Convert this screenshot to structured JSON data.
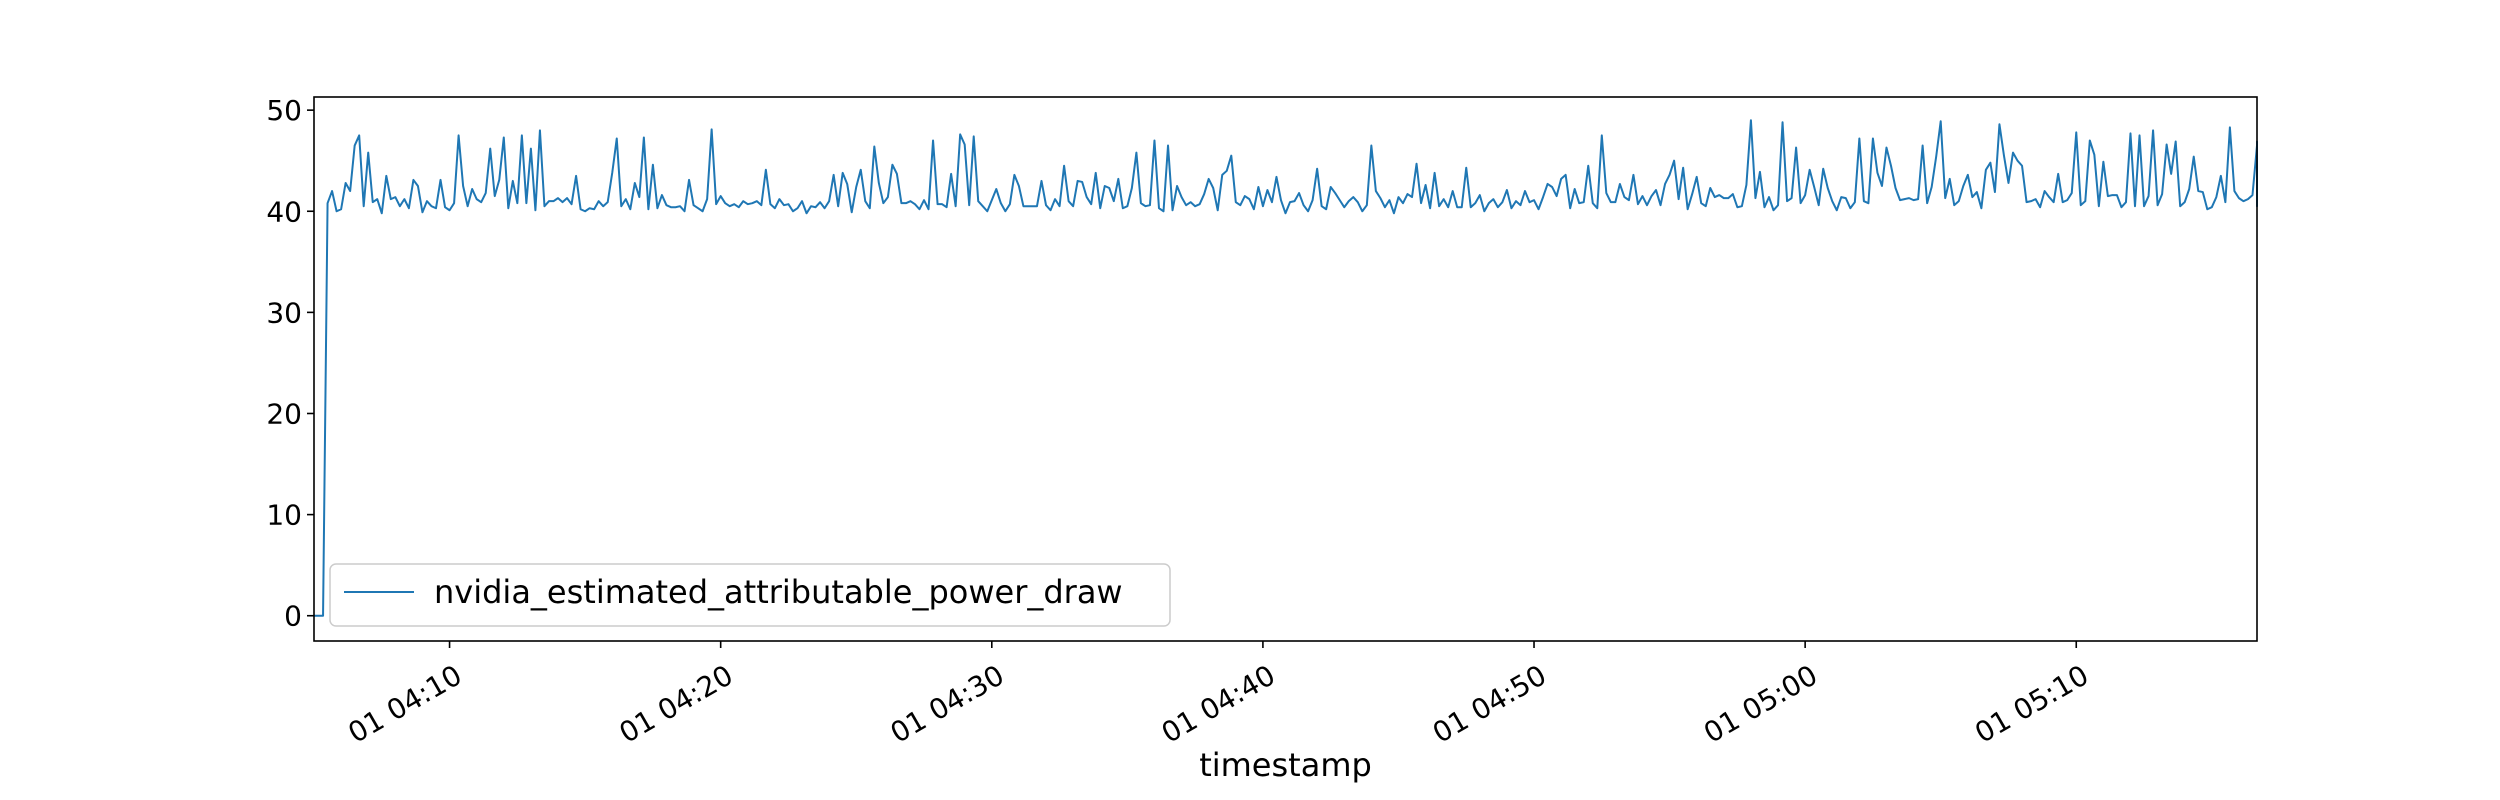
{
  "chart_data": {
    "type": "line",
    "xlabel": "timestamp",
    "ylabel": "",
    "ylim": [
      -2.5,
      51.3
    ],
    "xlim": [
      "01 04:05:00",
      "01 05:16:40"
    ],
    "grid": false,
    "legend_placement": "lower-left",
    "colors": {
      "series": "#1f77b4",
      "axes": "#000000",
      "legend_border": "#cccccc"
    },
    "x_ticks": [
      {
        "x": "01 04:10:00",
        "label": "01 04:10"
      },
      {
        "x": "01 04:20:00",
        "label": "01 04:20"
      },
      {
        "x": "01 04:30:00",
        "label": "01 04:30"
      },
      {
        "x": "01 04:40:00",
        "label": "01 04:40"
      },
      {
        "x": "01 04:50:00",
        "label": "01 04:50"
      },
      {
        "x": "01 05:00:00",
        "label": "01 05:00"
      },
      {
        "x": "01 05:10:00",
        "label": "01 05:10"
      }
    ],
    "y_ticks": [
      {
        "y": 0,
        "label": "0"
      },
      {
        "y": 10,
        "label": "10"
      },
      {
        "y": 20,
        "label": "20"
      },
      {
        "y": 30,
        "label": "30"
      },
      {
        "y": 40,
        "label": "40"
      },
      {
        "y": 50,
        "label": "50"
      }
    ],
    "series": [
      {
        "name": "nvidia_estimated_attributable_power_draw",
        "x_start": "01 04:05:00",
        "x_step_seconds": 10,
        "values": [
          0.0,
          0.0,
          0.0,
          40.8,
          42.0,
          40.0,
          40.2,
          42.8,
          42.0,
          46.5,
          47.5,
          40.5,
          45.8,
          40.9,
          41.2,
          39.8,
          43.5,
          41.2,
          41.4,
          40.5,
          41.2,
          40.3,
          43.1,
          42.5,
          39.9,
          41.0,
          40.5,
          40.3,
          43.1,
          40.4,
          40.1,
          40.8,
          47.5,
          42.5,
          40.5,
          42.2,
          41.2,
          40.9,
          41.8,
          46.2,
          41.5,
          43.1,
          47.3,
          40.3,
          43.0,
          40.8,
          47.5,
          40.8,
          46.2,
          40.1,
          48.0,
          40.5,
          41.0,
          41.0,
          41.3,
          40.9,
          41.3,
          40.7,
          43.5,
          40.2,
          40.0,
          40.3,
          40.2,
          41.0,
          40.5,
          40.9,
          43.8,
          47.2,
          40.5,
          41.2,
          40.2,
          42.8,
          41.4,
          47.3,
          40.2,
          44.6,
          40.3,
          41.6,
          40.6,
          40.4,
          40.4,
          40.5,
          40.0,
          43.1,
          40.6,
          40.3,
          40.0,
          41.2,
          48.1,
          40.7,
          41.5,
          40.8,
          40.5,
          40.7,
          40.4,
          41.0,
          40.7,
          40.8,
          41.0,
          40.6,
          44.1,
          40.7,
          40.3,
          41.2,
          40.6,
          40.7,
          40.0,
          40.3,
          41.0,
          39.8,
          40.5,
          40.4,
          40.9,
          40.3,
          41.0,
          43.6,
          40.5,
          43.8,
          42.7,
          39.9,
          42.4,
          44.1,
          41.0,
          40.3,
          46.4,
          42.8,
          40.8,
          41.4,
          44.6,
          43.7,
          40.8,
          40.8,
          41.0,
          40.7,
          40.2,
          41.1,
          40.2,
          47.0,
          40.7,
          40.7,
          40.4,
          43.7,
          40.5,
          47.6,
          46.6,
          40.6,
          47.4,
          41.0,
          40.5,
          40.0,
          41.1,
          42.2,
          40.8,
          40.0,
          40.7,
          43.6,
          42.5,
          40.5,
          40.5,
          40.5,
          40.5,
          43.0,
          40.6,
          40.1,
          41.2,
          40.5,
          44.5,
          41.0,
          40.5,
          43.0,
          42.9,
          41.4,
          40.7,
          43.8,
          40.3,
          42.5,
          42.3,
          41.0,
          43.2,
          40.3,
          40.5,
          42.3,
          45.8,
          40.8,
          40.5,
          40.6,
          47.0,
          40.3,
          40.0,
          46.5,
          40.1,
          42.5,
          41.4,
          40.6,
          40.9,
          40.5,
          40.7,
          41.7,
          43.2,
          42.3,
          40.1,
          43.6,
          44.0,
          45.5,
          40.9,
          40.6,
          41.5,
          41.2,
          40.2,
          42.4,
          40.5,
          42.1,
          40.9,
          43.4,
          41.1,
          39.8,
          40.9,
          41.0,
          41.8,
          40.6,
          40.0,
          41.1,
          44.2,
          40.5,
          40.2,
          42.4,
          41.8,
          41.1,
          40.4,
          41.0,
          41.4,
          40.9,
          40.0,
          40.6,
          46.5,
          42.0,
          41.3,
          40.4,
          41.1,
          39.8,
          41.4,
          40.8,
          41.7,
          41.4,
          44.7,
          40.8,
          42.6,
          40.3,
          43.8,
          40.5,
          41.2,
          40.4,
          42.0,
          40.4,
          40.4,
          44.3,
          40.4,
          40.8,
          41.6,
          40.0,
          40.8,
          41.2,
          40.4,
          40.9,
          42.1,
          40.3,
          41.0,
          40.6,
          42.0,
          40.9,
          41.1,
          40.2,
          41.4,
          42.7,
          42.4,
          41.5,
          43.2,
          43.6,
          40.3,
          42.2,
          40.8,
          40.9,
          44.5,
          40.8,
          40.3,
          47.5,
          41.8,
          40.9,
          40.9,
          42.7,
          41.4,
          41.1,
          43.6,
          40.7,
          41.5,
          40.6,
          41.5,
          42.1,
          40.6,
          42.7,
          43.6,
          45.0,
          41.2,
          44.3,
          40.2,
          41.7,
          43.4,
          40.8,
          40.5,
          42.3,
          41.4,
          41.6,
          41.3,
          41.3,
          41.7,
          40.4,
          40.5,
          42.6,
          49.0,
          41.3,
          43.9,
          40.4,
          41.4,
          40.1,
          40.6,
          48.8,
          41.0,
          41.3,
          46.3,
          40.8,
          41.6,
          44.1,
          42.4,
          40.6,
          44.2,
          42.3,
          41.0,
          40.1,
          41.4,
          41.3,
          40.3,
          40.9,
          47.2,
          41.0,
          40.8,
          47.2,
          43.8,
          42.5,
          46.3,
          44.5,
          42.3,
          41.1,
          41.2,
          41.3,
          41.1,
          41.2,
          46.5,
          40.8,
          42.4,
          45.4,
          48.9,
          41.3,
          43.2,
          40.6,
          41.0,
          42.5,
          43.6,
          41.4,
          41.9,
          40.3,
          44.1,
          44.8,
          41.9,
          48.6,
          45.5,
          42.8,
          45.8,
          45.0,
          44.5,
          40.9,
          41.0,
          41.2,
          40.4,
          42.0,
          41.4,
          40.9,
          43.7,
          40.9,
          41.1,
          41.8,
          47.8,
          40.6,
          41.0,
          47.0,
          45.6,
          40.5,
          44.9,
          41.5,
          41.6,
          41.6,
          40.4,
          40.9,
          47.7,
          40.5,
          47.5,
          40.5,
          41.5,
          48.0,
          40.6,
          41.7,
          46.6,
          43.7,
          46.9,
          40.5,
          40.9,
          42.2,
          45.4,
          42.0,
          41.9,
          40.2,
          40.4,
          41.4,
          43.5,
          40.9,
          48.3,
          42.0,
          41.3,
          41.0,
          41.2,
          41.6,
          46.5,
          41.2,
          42.8,
          41.0,
          42.3,
          43.8,
          41.0,
          44.0,
          40.8,
          41.0,
          41.8,
          43.8,
          42.6,
          41.6,
          40.5,
          41.1,
          41.7,
          41.5,
          43.6,
          46.9,
          42.5,
          43.0,
          44.9,
          44.6,
          42.4,
          42.3,
          42.6,
          41.3,
          41.1,
          41.1
        ]
      }
    ]
  }
}
